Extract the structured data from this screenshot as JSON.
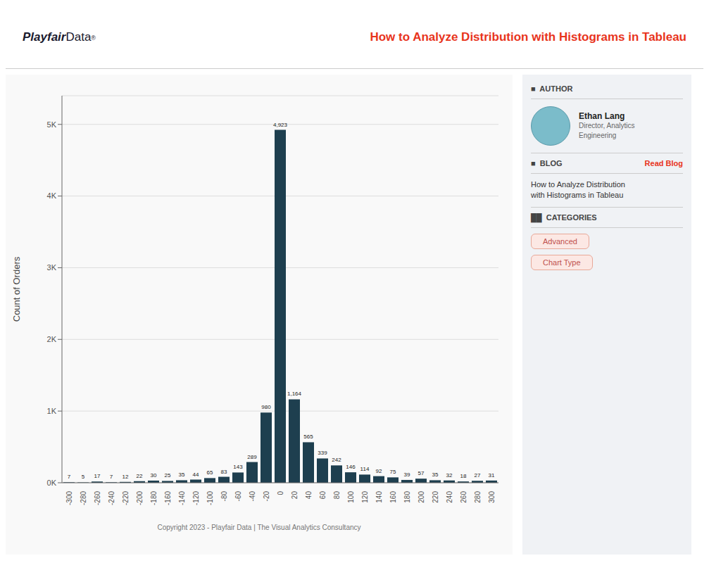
{
  "chart_data": {
    "type": "bar",
    "title": "How to Analyze Distribution with Histograms in Tableau",
    "ylabel": "Count of Orders",
    "categories": [
      "-300",
      "-280",
      "-260",
      "-240",
      "-220",
      "-200",
      "-180",
      "-160",
      "-140",
      "-120",
      "-100",
      "-80",
      "-60",
      "-40",
      "-20",
      "0",
      "20",
      "40",
      "60",
      "80",
      "100",
      "120",
      "140",
      "160",
      "180",
      "200",
      "220",
      "240",
      "260",
      "280",
      "300"
    ],
    "values": [
      7,
      5,
      17,
      7,
      12,
      22,
      30,
      25,
      35,
      44,
      65,
      83,
      143,
      289,
      980,
      4923,
      1164,
      565,
      339,
      242,
      146,
      114,
      92,
      75,
      39,
      57,
      35,
      32,
      18,
      27,
      31
    ],
    "value_labels": [
      "7",
      "5",
      "17",
      "7",
      "12",
      "22",
      "30",
      "25",
      "35",
      "44",
      "65",
      "83",
      "143",
      "289",
      "980",
      "4,923",
      "1,164",
      "565",
      "339",
      "242",
      "146",
      "114",
      "92",
      "75",
      "39",
      "57",
      "35",
      "32",
      "18",
      "27",
      "31"
    ],
    "data_labels": true,
    "color": "#1e3f4f",
    "ylim": [
      0,
      5400
    ],
    "yticks": [
      {
        "value": 0,
        "label": "0K"
      },
      {
        "value": 1000,
        "label": "1K"
      },
      {
        "value": 2000,
        "label": "2K"
      },
      {
        "value": 3000,
        "label": "3K"
      },
      {
        "value": 4000,
        "label": "4K"
      },
      {
        "value": 5000,
        "label": "5K"
      }
    ],
    "grid": true,
    "annotations": [
      "Playfair",
      "Data",
      "®",
      "■  AUTHOR",
      "Ethan Lang",
      "Director, Analytics\nEngineering",
      "■  BLOG",
      "Read Blog",
      "How to Analyze Distribution\nwith Histograms in Tableau",
      "██  CATEGORIES",
      "Advanced",
      "Chart Type",
      "Copyright 2023 - Playfair Data | The Visual Analytics Consultancy"
    ]
  }
}
